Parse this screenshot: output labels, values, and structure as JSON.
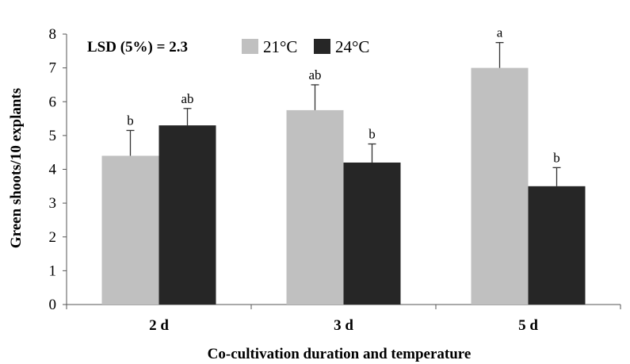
{
  "chart_data": {
    "type": "bar",
    "categories": [
      "2 d",
      "3 d",
      "5 d"
    ],
    "series": [
      {
        "name": "21°C",
        "color": "#c0c0c0",
        "values": [
          4.4,
          5.75,
          7.0
        ],
        "errors": [
          0.75,
          0.75,
          0.75
        ],
        "letters": [
          "b",
          "ab",
          "a"
        ]
      },
      {
        "name": "24°C",
        "color": "#262626",
        "values": [
          5.3,
          4.2,
          3.5
        ],
        "errors": [
          0.5,
          0.55,
          0.55
        ],
        "letters": [
          "ab",
          "b",
          "b"
        ]
      }
    ],
    "xlabel": "Co-cultivation duration and temperature",
    "ylabel": "Green shoots/10 explants",
    "ylim": [
      0,
      8
    ],
    "yticks": [
      0,
      1,
      2,
      3,
      4,
      5,
      6,
      7,
      8
    ],
    "grid": false,
    "legend_position": "top",
    "annotation": "LSD (5%) = 2.3"
  }
}
